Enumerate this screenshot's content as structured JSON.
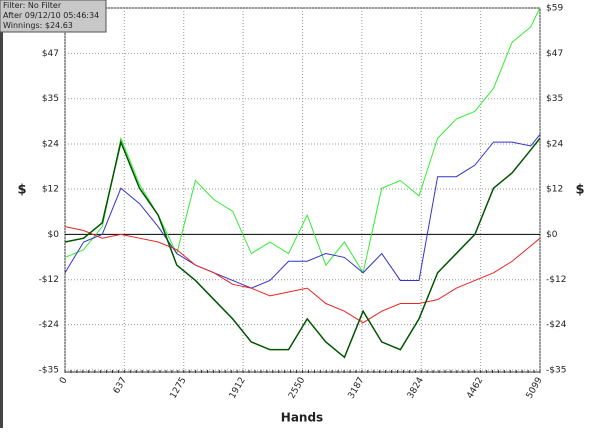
{
  "chart_data": {
    "type": "line",
    "annotations": [
      "Filter: No Filter",
      "After 09/12/10 05:46:34",
      "Winnings: $24.63"
    ],
    "xlabel": "Hands",
    "ylabel": "$",
    "y2label": "$",
    "x": [
      0,
      200,
      400,
      600,
      800,
      1000,
      1200,
      1400,
      1600,
      1800,
      2000,
      2200,
      2400,
      2600,
      2800,
      3000,
      3200,
      3400,
      3600,
      3800,
      4000,
      4200,
      4400,
      4600,
      4800,
      5000,
      5099
    ],
    "series": [
      {
        "color": "#33ee33",
        "values": [
          -6,
          -4,
          2,
          25,
          13,
          5,
          -5,
          14,
          9,
          6,
          -5,
          -2,
          -5,
          5,
          -8,
          -2,
          -10,
          12,
          14,
          10,
          25,
          30,
          32,
          38,
          50,
          54,
          59
        ]
      },
      {
        "color": "#3333cc",
        "values": [
          -10,
          -2,
          0,
          12,
          8,
          2,
          -5,
          -8,
          -10,
          -12,
          -14,
          -12,
          -7,
          -7,
          -5,
          -6,
          -10,
          -5,
          -12,
          -12,
          15,
          15,
          18,
          24,
          24,
          23,
          26
        ]
      },
      {
        "color": "#ee2222",
        "values": [
          2,
          1,
          -1,
          0,
          -1,
          -2,
          -4,
          -8,
          -10,
          -13,
          -14,
          -16,
          -15,
          -14,
          -18,
          -20,
          -23,
          -20,
          -18,
          -18,
          -17,
          -14,
          -12,
          -10,
          -7,
          -3,
          -1
        ]
      },
      {
        "color": "#005500",
        "values": [
          -2,
          -1,
          3,
          24,
          12,
          5,
          -8,
          -12,
          -17,
          -22,
          -28,
          -30,
          -30,
          -22,
          -28,
          -32,
          -20,
          -28,
          -30,
          -22,
          -10,
          -5,
          0,
          12,
          16,
          22,
          25
        ]
      }
    ],
    "xlim": [
      0,
      5099
    ],
    "xticks": [
      0,
      637,
      1275,
      1912,
      2550,
      3187,
      3824,
      4462,
      5099
    ],
    "ylim": [
      -35.3,
      58.9
    ],
    "yticks": [
      {
        "value": -35.3,
        "label": "-$35"
      },
      {
        "value": -23.5,
        "label": "-$24"
      },
      {
        "value": -11.8,
        "label": "-$12"
      },
      {
        "value": 0,
        "label": "$0"
      },
      {
        "value": 11.8,
        "label": "$12"
      },
      {
        "value": 23.5,
        "label": "$24"
      },
      {
        "value": 35.3,
        "label": "$35"
      },
      {
        "value": 47.1,
        "label": "$47"
      },
      {
        "value": 58.9,
        "label": "$59"
      }
    ],
    "grid": true
  }
}
